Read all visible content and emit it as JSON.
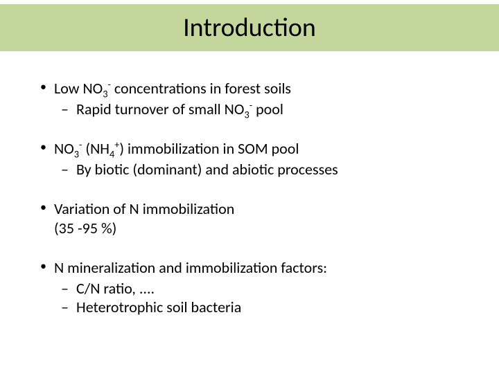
{
  "title": "Introduction",
  "colors": {
    "title_bar_bg": "#c3d69b",
    "page_bg": "#ffffff",
    "text": "#000000"
  },
  "typography": {
    "title_fontsize": 38,
    "body_fontsize": 22,
    "font_family": "Calibri"
  },
  "bullets": [
    {
      "text_html": "Low NO<sub>3</sub><sup>-</sup> concentrations in forest soils",
      "sub": [
        {
          "text_html": "Rapid turnover of small NO<sub>3</sub><sup>-</sup>  pool"
        }
      ]
    },
    {
      "text_html": "NO<sub>3</sub><sup>-</sup> (NH<sub>4</sub><sup>+</sup>) immobilization in SOM pool",
      "sub": [
        {
          "text_html": "By biotic (dominant) and abiotic processes"
        }
      ]
    },
    {
      "text_html": "Variation of N immobilization<span class=\"secondline\">(35 -95 %)</span>",
      "sub": []
    },
    {
      "text_html": "N mineralization and immobilization factors:",
      "sub": [
        {
          "text_html": "C/N ratio, ...."
        },
        {
          "text_html": "Heterotrophic soil bacteria"
        }
      ]
    }
  ]
}
